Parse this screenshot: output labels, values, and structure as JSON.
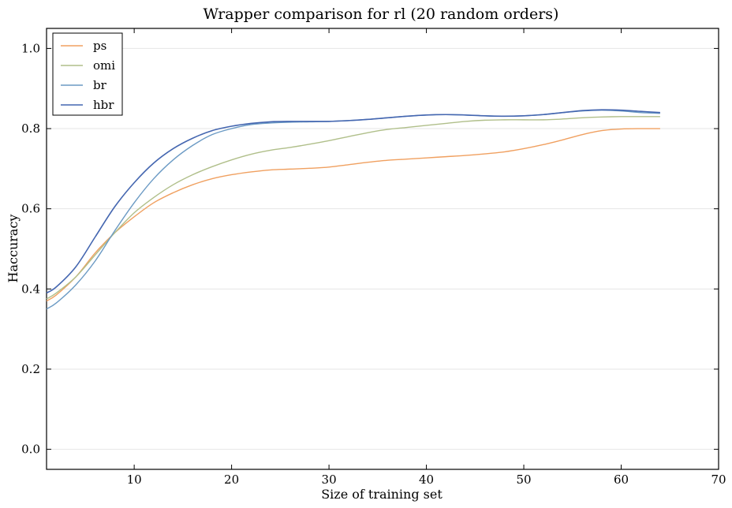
{
  "chart_data": {
    "type": "line",
    "title": "Wrapper comparison for rl (20 random orders)",
    "xlabel": "Size of training set",
    "ylabel": "Haccuracy",
    "xlim": [
      1,
      70
    ],
    "ylim": [
      -0.05,
      1.05
    ],
    "xticks": [
      10,
      20,
      30,
      40,
      50,
      60,
      70
    ],
    "yticks": [
      0.0,
      0.2,
      0.4,
      0.6,
      0.8,
      1.0
    ],
    "xtick_labels": [
      "10",
      "20",
      "30",
      "40",
      "50",
      "60",
      "70"
    ],
    "ytick_labels": [
      "0.0",
      "0.2",
      "0.4",
      "0.6",
      "0.8",
      "1.0"
    ],
    "grid": "horizontal",
    "legend_position": "top-left",
    "x": [
      1,
      2,
      4,
      6,
      8,
      10,
      12,
      14,
      16,
      18,
      20,
      22,
      24,
      26,
      28,
      30,
      32,
      34,
      36,
      38,
      40,
      42,
      44,
      46,
      48,
      50,
      52,
      54,
      56,
      58,
      60,
      62,
      64
    ],
    "series": [
      {
        "name": "ps",
        "color": "#f0a060",
        "values": [
          0.37,
          0.385,
          0.43,
          0.49,
          0.54,
          0.58,
          0.615,
          0.64,
          0.66,
          0.675,
          0.685,
          0.692,
          0.697,
          0.699,
          0.701,
          0.704,
          0.71,
          0.716,
          0.721,
          0.724,
          0.727,
          0.73,
          0.733,
          0.737,
          0.742,
          0.75,
          0.76,
          0.772,
          0.785,
          0.795,
          0.799,
          0.8,
          0.8
        ]
      },
      {
        "name": "omi",
        "color": "#b0bf8a",
        "values": [
          0.375,
          0.39,
          0.43,
          0.485,
          0.54,
          0.59,
          0.628,
          0.66,
          0.685,
          0.705,
          0.722,
          0.736,
          0.746,
          0.753,
          0.761,
          0.77,
          0.78,
          0.79,
          0.798,
          0.803,
          0.808,
          0.813,
          0.818,
          0.821,
          0.822,
          0.822,
          0.822,
          0.824,
          0.827,
          0.829,
          0.83,
          0.83,
          0.83
        ]
      },
      {
        "name": "br",
        "color": "#6b9ac4",
        "values": [
          0.35,
          0.365,
          0.41,
          0.47,
          0.545,
          0.615,
          0.675,
          0.722,
          0.758,
          0.785,
          0.8,
          0.81,
          0.814,
          0.816,
          0.817,
          0.818,
          0.82,
          0.823,
          0.827,
          0.831,
          0.834,
          0.835,
          0.834,
          0.832,
          0.831,
          0.832,
          0.835,
          0.84,
          0.844,
          0.846,
          0.844,
          0.84,
          0.838
        ]
      },
      {
        "name": "hbr",
        "color": "#4466b0",
        "values": [
          0.39,
          0.405,
          0.455,
          0.53,
          0.605,
          0.665,
          0.714,
          0.75,
          0.776,
          0.795,
          0.806,
          0.813,
          0.817,
          0.818,
          0.818,
          0.818,
          0.82,
          0.823,
          0.827,
          0.831,
          0.834,
          0.835,
          0.834,
          0.832,
          0.831,
          0.832,
          0.835,
          0.84,
          0.845,
          0.847,
          0.846,
          0.843,
          0.84
        ]
      }
    ]
  }
}
